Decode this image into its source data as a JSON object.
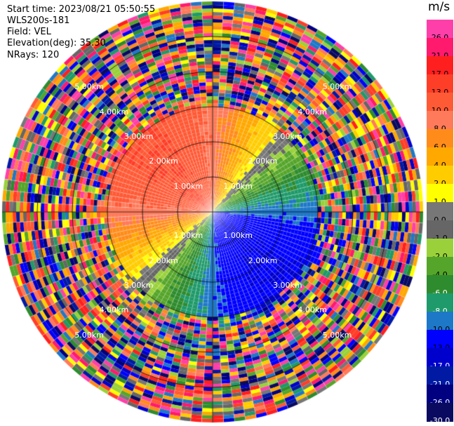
{
  "info": {
    "start_time": "Start time: 2023/08/21 05:50:55",
    "device": "WLS200s-181",
    "field": "Field: VEL",
    "elevation": "Elevation(deg): 35.30",
    "nrays": "NRays: 120"
  },
  "colors": {
    "background": "#ffffff",
    "grid": "#000000",
    "range_label": "#ffffff"
  },
  "chart_data": {
    "type": "heatmap",
    "projection": "polar-ppi",
    "rays": 120,
    "range_unit": "km",
    "max_range_km": 6.0,
    "range_rings_km": [
      1.0,
      2.0,
      3.0,
      4.0,
      5.0
    ],
    "ring_labels": [
      "1.00km",
      "2.00km",
      "3.00km",
      "4.00km",
      "5.00km"
    ],
    "velocity_field": {
      "unit": "m/s",
      "max_abs": 13,
      "toward_direction": "upper-left",
      "away_direction": "lower-right",
      "valid_range_km": 3.0,
      "noise_beyond_km": 3.0
    },
    "colorbar": {
      "unit_label": "m/s",
      "tick_labels": [
        "26.0",
        "21.0",
        "17.0",
        "13.0",
        "10.0",
        "8.0",
        "6.0",
        "4.0",
        "2.0",
        "1.0",
        "0.0",
        "-1.0",
        "-2.0",
        "-4.0",
        "-6.0",
        "-8.0",
        "-10.0",
        "-13.0",
        "-17.0",
        "-21.0",
        "-26.0",
        "-30.0"
      ],
      "levels": [
        26.0,
        21.0,
        17.0,
        13.0,
        10.0,
        8.0,
        6.0,
        4.0,
        2.0,
        1.0,
        0.0,
        -1.0,
        -2.0,
        -4.0,
        -6.0,
        -8.0,
        -10.0,
        -13.0,
        -17.0,
        -21.0,
        -26.0,
        -30.0
      ],
      "colors": [
        "#ff3fa9",
        "#ff1a6e",
        "#ff1f1f",
        "#ff3e28",
        "#ff5a36",
        "#ff7a5a",
        "#ff8c1a",
        "#ffa800",
        "#ffcc00",
        "#ffff00",
        "#777777",
        "#666666",
        "#9ad13a",
        "#55a52a",
        "#2e8c2e",
        "#1f9a6a",
        "#1e78c8",
        "#0000ff",
        "#0000cc",
        "#001aa3",
        "#000080",
        "#0a0a60"
      ],
      "text_colors": [
        "#000",
        "#000",
        "#000",
        "#000",
        "#000",
        "#000",
        "#000",
        "#000",
        "#000",
        "#000",
        "#000",
        "#000",
        "#000",
        "#000",
        "#fff",
        "#fff",
        "#000",
        "#000",
        "#fff",
        "#fff",
        "#fff",
        "#fff"
      ]
    }
  }
}
